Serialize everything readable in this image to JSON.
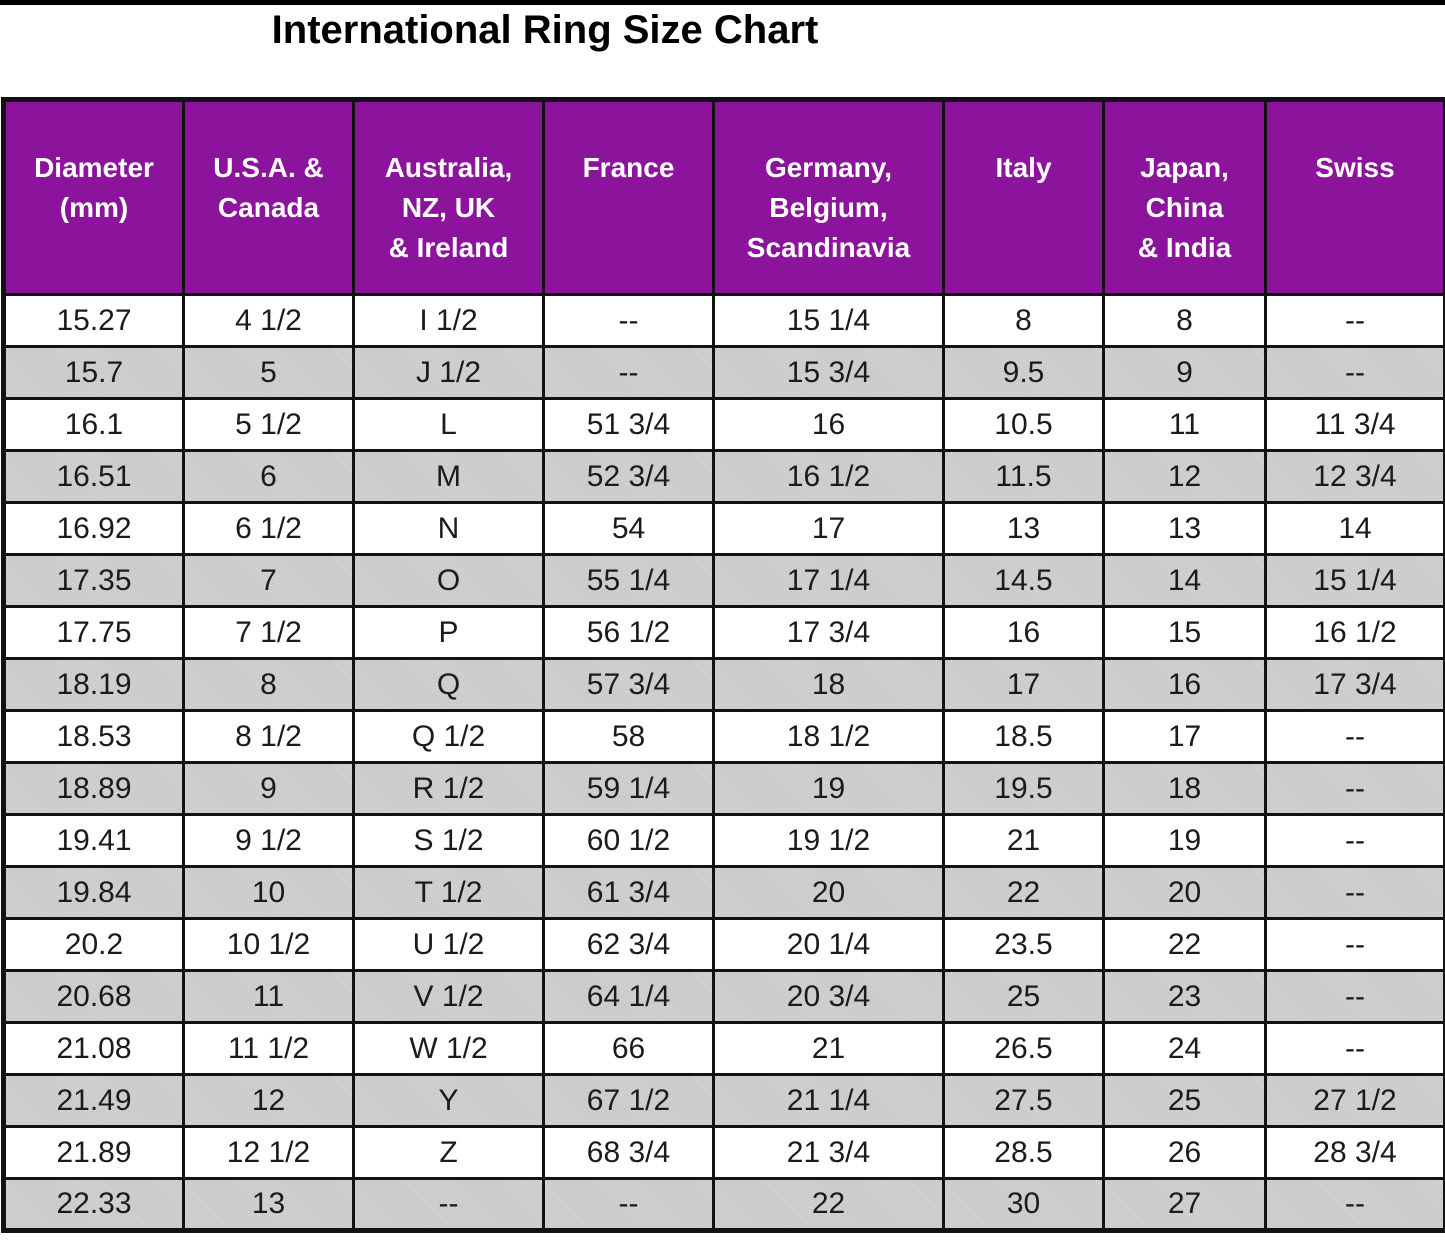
{
  "page": {
    "title": "International Ring Size Chart"
  },
  "colors": {
    "header_bg": "#8C149C",
    "header_fg": "#FFFFFF",
    "alt_row_bg": "#C9C9C9",
    "grid": "#121212",
    "top_rule": "#000000"
  },
  "header_display": [
    {
      "id": "diameter-mm",
      "lines": [
        "Diameter",
        "(mm)"
      ]
    },
    {
      "id": "usa-canada",
      "lines": [
        "U.S.A. &",
        "Canada"
      ]
    },
    {
      "id": "australia-nz-uk-ireland",
      "lines": [
        "Australia,",
        "NZ, UK",
        "& Ireland"
      ]
    },
    {
      "id": "france",
      "lines": [
        "France"
      ]
    },
    {
      "id": "germany-belgium-scandinavia",
      "lines": [
        "Germany,",
        "Belgium,",
        "Scandinavia"
      ]
    },
    {
      "id": "italy",
      "lines": [
        "Italy"
      ]
    },
    {
      "id": "japan-china-india",
      "lines": [
        "Japan,",
        "China",
        "& India"
      ]
    },
    {
      "id": "swiss",
      "lines": [
        "Swiss"
      ]
    }
  ],
  "chart_data": {
    "type": "table",
    "title": "International Ring Size Chart",
    "columns": [
      "Diameter (mm)",
      "U.S.A. & Canada",
      "Australia, NZ, UK & Ireland",
      "France",
      "Germany, Belgium, Scandinavia",
      "Italy",
      "Japan, China & India",
      "Swiss"
    ],
    "rows": [
      [
        "15.27",
        "4 1/2",
        "I 1/2",
        "--",
        "15 1/4",
        "8",
        "8",
        "--"
      ],
      [
        "15.7",
        "5",
        "J 1/2",
        "--",
        "15 3/4",
        "9.5",
        "9",
        "--"
      ],
      [
        "16.1",
        "5 1/2",
        "L",
        "51 3/4",
        "16",
        "10.5",
        "11",
        "11 3/4"
      ],
      [
        "16.51",
        "6",
        "M",
        "52 3/4",
        "16 1/2",
        "11.5",
        "12",
        "12 3/4"
      ],
      [
        "16.92",
        "6 1/2",
        "N",
        "54",
        "17",
        "13",
        "13",
        "14"
      ],
      [
        "17.35",
        "7",
        "O",
        "55 1/4",
        "17 1/4",
        "14.5",
        "14",
        "15 1/4"
      ],
      [
        "17.75",
        "7 1/2",
        "P",
        "56 1/2",
        "17 3/4",
        "16",
        "15",
        "16 1/2"
      ],
      [
        "18.19",
        "8",
        "Q",
        "57 3/4",
        "18",
        "17",
        "16",
        "17 3/4"
      ],
      [
        "18.53",
        "8 1/2",
        "Q 1/2",
        "58",
        "18 1/2",
        "18.5",
        "17",
        "--"
      ],
      [
        "18.89",
        "9",
        "R 1/2",
        "59 1/4",
        "19",
        "19.5",
        "18",
        "--"
      ],
      [
        "19.41",
        "9 1/2",
        "S 1/2",
        "60 1/2",
        "19 1/2",
        "21",
        "19",
        "--"
      ],
      [
        "19.84",
        "10",
        "T 1/2",
        "61 3/4",
        "20",
        "22",
        "20",
        "--"
      ],
      [
        "20.2",
        "10 1/2",
        "U 1/2",
        "62 3/4",
        "20 1/4",
        "23.5",
        "22",
        "--"
      ],
      [
        "20.68",
        "11",
        "V 1/2",
        "64 1/4",
        "20 3/4",
        "25",
        "23",
        "--"
      ],
      [
        "21.08",
        "11 1/2",
        "W 1/2",
        "66",
        "21",
        "26.5",
        "24",
        "--"
      ],
      [
        "21.49",
        "12",
        "Y",
        "67 1/2",
        "21 1/4",
        "27.5",
        "25",
        "27 1/2"
      ],
      [
        "21.89",
        "12 1/2",
        "Z",
        "68 3/4",
        "21 3/4",
        "28.5",
        "26",
        "28 3/4"
      ],
      [
        "22.33",
        "13",
        "--",
        "--",
        "22",
        "30",
        "27",
        "--"
      ]
    ]
  }
}
